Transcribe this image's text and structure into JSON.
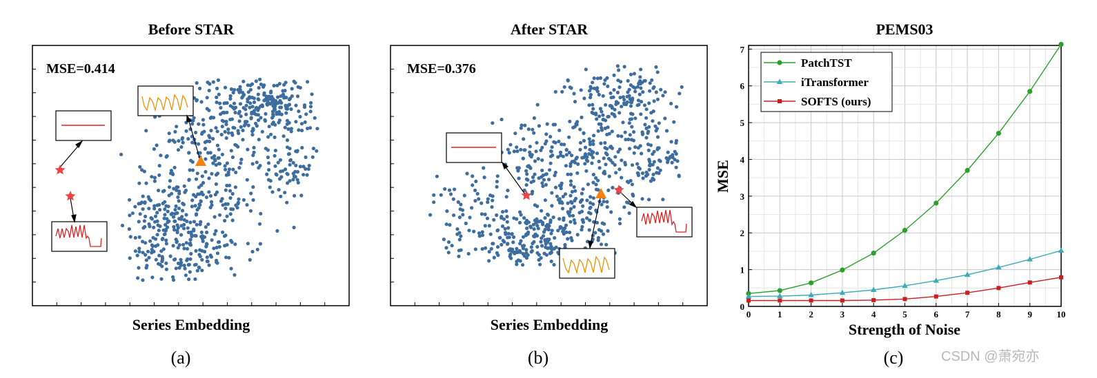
{
  "figure": {
    "watermark": "CSDN @萧宛亦",
    "colors": {
      "points": "#3d6d9e",
      "star": "#ee4444",
      "triangle": "#f5800f",
      "wave_red": "#e02020",
      "wave_orange": "#f09000"
    }
  },
  "panel_a": {
    "title": "Before STAR",
    "xlabel": "Series Embedding",
    "caption": "(a)",
    "mse_text": "MSE=0.414"
  },
  "panel_b": {
    "title": "After STAR",
    "xlabel": "Series Embedding",
    "caption": "(b)",
    "mse_text": "MSE=0.376"
  },
  "panel_c": {
    "caption": "(c)"
  },
  "chart_data": [
    {
      "type": "scatter",
      "title": "Before STAR",
      "xlabel": "Series Embedding",
      "annotation": "MSE=0.414",
      "markers": [
        "red-star",
        "red-star",
        "orange-triangle"
      ],
      "insets": [
        "flat-line",
        "spiky-wave",
        "periodic-wave"
      ]
    },
    {
      "type": "scatter",
      "title": "After STAR",
      "xlabel": "Series Embedding",
      "annotation": "MSE=0.376",
      "markers": [
        "red-star",
        "red-star",
        "orange-triangle"
      ],
      "insets": [
        "flat-line",
        "spiky-wave",
        "periodic-wave"
      ]
    },
    {
      "type": "line",
      "title": "PEMS03",
      "xlabel": "Strength of Noise",
      "ylabel": "MSE",
      "x": [
        0,
        1,
        2,
        3,
        4,
        5,
        6,
        7,
        8,
        9,
        10
      ],
      "xlim": [
        0,
        10
      ],
      "ylim": [
        0,
        7.1
      ],
      "xticks": [
        "0",
        "1",
        "2",
        "3",
        "4",
        "5",
        "6",
        "7",
        "8",
        "9",
        "10"
      ],
      "yticks": [
        "0",
        "1",
        "2",
        "3",
        "4",
        "5",
        "6",
        "7"
      ],
      "grid": true,
      "legend_position": "top-left",
      "series": [
        {
          "name": "PatchTST",
          "color": "#2ca02c",
          "marker": "circle",
          "values": [
            0.35,
            0.43,
            0.64,
            0.99,
            1.45,
            2.07,
            2.81,
            3.7,
            4.71,
            5.85,
            7.13
          ]
        },
        {
          "name": "iTransformer",
          "color": "#3aabb8",
          "marker": "triangle",
          "values": [
            0.27,
            0.28,
            0.31,
            0.37,
            0.45,
            0.56,
            0.7,
            0.86,
            1.06,
            1.28,
            1.52
          ]
        },
        {
          "name": "SOFTS (ours)",
          "color": "#c81e1e",
          "marker": "square",
          "values": [
            0.16,
            0.16,
            0.16,
            0.16,
            0.17,
            0.2,
            0.27,
            0.37,
            0.5,
            0.65,
            0.79
          ]
        }
      ]
    }
  ]
}
